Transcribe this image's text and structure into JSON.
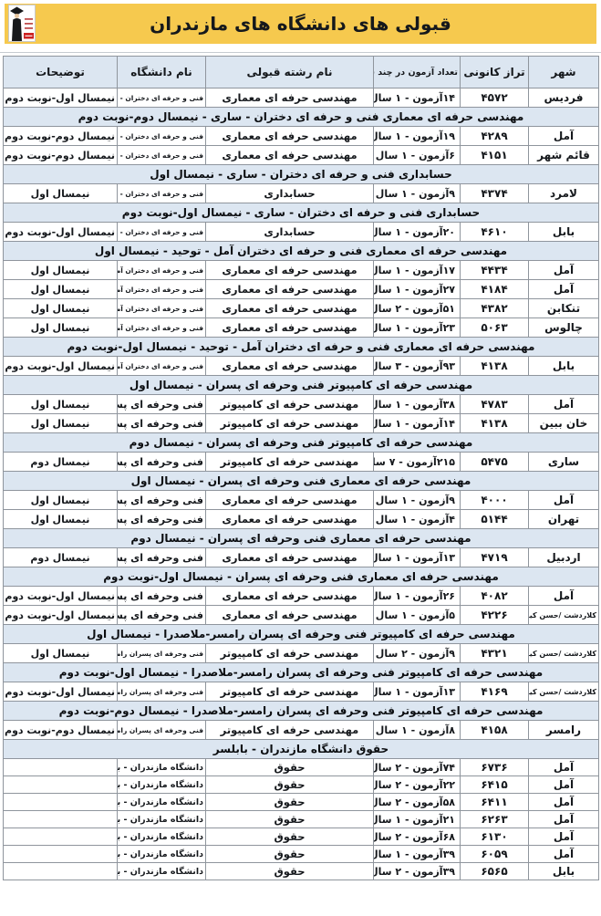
{
  "title": "قبولی های دانشگاه های مازندران",
  "logo": {
    "name": "kanoon-graduate-logo"
  },
  "colors": {
    "title_bar_yellow": "#F6C94E",
    "header_blue": "#DCE6F1",
    "border_gray": "#8f959d",
    "logo_red": "#CC2222"
  },
  "table": {
    "headers": [
      "شهر",
      "تراز کانونی",
      "تعداد آزمون در چند سال",
      "نام رشته قبولی",
      "نام دانشگاه",
      "توضیحات"
    ],
    "rows": [
      {
        "type": "data",
        "city": "فردیس",
        "score": "۴۵۷۲",
        "exams": "۱۴آزمون - ۱ سال",
        "major": "مهندسی حرفه ای معماری",
        "university": "فنی و حرفه ای دختران - ساری",
        "note": "نیمسال اول-نوبت دوم"
      },
      {
        "type": "section",
        "label": "مهندسی حرفه ای معماری فنی و حرفه ای دختران  - ساری - نیمسال دوم-نوبت دوم"
      },
      {
        "type": "data",
        "city": "آمل",
        "score": "۴۲۸۹",
        "exams": "۱۹آزمون - ۱ سال",
        "major": "مهندسی حرفه ای معماری",
        "university": "فنی و حرفه ای دختران - ساری",
        "note": "نیمسال دوم-نوبت دوم"
      },
      {
        "type": "data",
        "city": "قائم شهر",
        "score": "۴۱۵۱",
        "exams": "۶آزمون - ۱ سال",
        "major": "مهندسی حرفه ای معماری",
        "university": "فنی و حرفه ای دختران - ساری",
        "note": "نیمسال دوم-نوبت دوم"
      },
      {
        "type": "section",
        "label": "حسابداری فنی و حرفه ای دختران  - ساری - نیمسال اول"
      },
      {
        "type": "data",
        "city": "لامرد",
        "score": "۴۳۷۴",
        "exams": "۹آزمون - ۱ سال",
        "major": "حسابداری",
        "university": "فنی و حرفه ای دختران - ساری",
        "note": "نیمسال اول"
      },
      {
        "type": "section",
        "label": "حسابداری فنی و حرفه ای دختران  - ساری - نیمسال اول-نوبت دوم"
      },
      {
        "type": "data",
        "city": "بابل",
        "score": "۴۶۱۰",
        "exams": "۲۰آزمون - ۱ سال",
        "major": "حسابداری",
        "university": "فنی و حرفه ای دختران - ساری",
        "note": "نیمسال اول-نوبت دوم"
      },
      {
        "type": "section",
        "label": "مهندسی حرفه ای معماری فنی و حرفه ای دختران آمل - توحید - نیمسال اول"
      },
      {
        "type": "data",
        "city": "آمل",
        "score": "۴۴۳۴",
        "exams": "۱۷آزمون - ۱ سال",
        "major": "مهندسی حرفه ای معماری",
        "university": "فنی و حرفه ای دختران آمل - توحید",
        "note": "نیمسال اول"
      },
      {
        "type": "data",
        "city": "آمل",
        "score": "۴۱۸۴",
        "exams": "۲۷آزمون - ۱ سال",
        "major": "مهندسی حرفه ای معماری",
        "university": "فنی و حرفه ای دختران آمل - توحید",
        "note": "نیمسال اول"
      },
      {
        "type": "data",
        "city": "تنکابن",
        "score": "۴۳۸۲",
        "exams": "۵۱آزمون - ۲ سال",
        "major": "مهندسی حرفه ای معماری",
        "university": "فنی و حرفه ای دختران آمل - توحید",
        "note": "نیمسال اول"
      },
      {
        "type": "data",
        "city": "چالوس",
        "score": "۵۰۶۳",
        "exams": "۲۳آزمون - ۱ سال",
        "major": "مهندسی حرفه ای معماری",
        "university": "فنی و حرفه ای دختران آمل - توحید",
        "note": "نیمسال اول"
      },
      {
        "type": "section",
        "label": "مهندسی حرفه ای معماری فنی و حرفه ای دختران آمل - توحید - نیمسال اول-نوبت دوم"
      },
      {
        "type": "data",
        "city": "بابل",
        "score": "۴۱۳۸",
        "exams": "۹۳آزمون - ۳ سال",
        "major": "مهندسی حرفه ای معماری",
        "university": "فنی و حرفه ای دختران آمل - توحید",
        "note": "نیمسال اول-نوبت دوم"
      },
      {
        "type": "section",
        "label": "مهندسی حرفه ای کامپیوتر فنی وحرفه ای پسران - نیمسال اول"
      },
      {
        "type": "data",
        "city": "آمل",
        "score": "۴۷۸۳",
        "exams": "۳۸آزمون - ۱ سال",
        "major": "مهندسی حرفه ای کامپیوتر",
        "university": "فنی وحرفه ای پسران",
        "note": "نیمسال اول"
      },
      {
        "type": "data",
        "city": "خان ببین",
        "score": "۴۱۳۸",
        "exams": "۱۴آزمون - ۱ سال",
        "major": "مهندسی حرفه ای کامپیوتر",
        "university": "فنی وحرفه ای پسران",
        "note": "نیمسال اول"
      },
      {
        "type": "section",
        "label": "مهندسی حرفه ای کامپیوتر فنی وحرفه ای پسران - نیمسال دوم"
      },
      {
        "type": "data",
        "city": "ساری",
        "score": "۵۴۷۵",
        "exams": "۲۱۵آزمون - ۷ سال",
        "major": "مهندسی حرفه ای کامپیوتر",
        "university": "فنی وحرفه ای پسران",
        "note": "نیمسال دوم"
      },
      {
        "type": "section",
        "label": "مهندسی حرفه ای معماری فنی وحرفه ای پسران - نیمسال اول"
      },
      {
        "type": "data",
        "city": "آمل",
        "score": "۴۰۰۰",
        "exams": "۹آزمون - ۱ سال",
        "major": "مهندسی حرفه ای معماری",
        "university": "فنی وحرفه ای پسران",
        "note": "نیمسال اول"
      },
      {
        "type": "data",
        "city": "تهران",
        "score": "۵۱۴۴",
        "exams": "۴آزمون - ۱ سال",
        "major": "مهندسی حرفه ای معماری",
        "university": "فنی وحرفه ای پسران",
        "note": "نیمسال اول"
      },
      {
        "type": "section",
        "label": "مهندسی حرفه ای معماری فنی وحرفه ای پسران - نیمسال دوم"
      },
      {
        "type": "data",
        "city": "اردبیل",
        "score": "۴۷۱۹",
        "exams": "۱۳آزمون - ۱ سال",
        "major": "مهندسی حرفه ای معماری",
        "university": "فنی وحرفه ای پسران",
        "note": "نیمسال دوم"
      },
      {
        "type": "section",
        "label": "مهندسی حرفه ای معماری فنی وحرفه ای پسران - نیمسال اول-نوبت دوم"
      },
      {
        "type": "data",
        "city": "آمل",
        "score": "۴۰۸۲",
        "exams": "۲۶آزمون - ۱ سال",
        "major": "مهندسی حرفه ای معماری",
        "university": "فنی وحرفه ای پسران",
        "note": "نیمسال اول-نوبت دوم"
      },
      {
        "type": "data",
        "city": "کلاردشت /حسن کیف",
        "score": "۴۲۲۶",
        "exams": "۵آزمون - ۱ سال",
        "major": "مهندسی حرفه ای معماری",
        "university": "فنی وحرفه ای پسران",
        "note": "نیمسال اول-نوبت دوم"
      },
      {
        "type": "section",
        "label": "مهندسی حرفه ای کامپیوتر فنی وحرفه ای پسران رامسر-ملاصدرا - نیمسال اول"
      },
      {
        "type": "data",
        "city": "کلاردشت /حسن کیف",
        "score": "۴۳۲۱",
        "exams": "۹آزمون - ۲ سال",
        "major": "مهندسی حرفه ای کامپیوتر",
        "university": "فنی وحرفه ای پسران رامسر-ملاصدرا",
        "note": "نیمسال اول"
      },
      {
        "type": "section",
        "label": "مهندسی حرفه ای کامپیوتر فنی وحرفه ای پسران رامسر-ملاصدرا - نیمسال اول-نوبت دوم"
      },
      {
        "type": "data",
        "city": "کلاردشت /حسن کیف",
        "score": "۴۱۶۹",
        "exams": "۱۳آزمون - ۱ سال",
        "major": "مهندسی حرفه ای کامپیوتر",
        "university": "فنی وحرفه ای پسران رامسر-ملاصدرا",
        "note": "نیمسال اول-نوبت دوم"
      },
      {
        "type": "section",
        "label": "مهندسی حرفه ای کامپیوتر فنی وحرفه ای پسران رامسر-ملاصدرا - نیمسال دوم-نوبت دوم"
      },
      {
        "type": "data",
        "city": "رامسر",
        "score": "۴۱۵۸",
        "exams": "۸آزمون - ۱ سال",
        "major": "مهندسی حرفه ای کامپیوتر",
        "university": "فنی وحرفه ای پسران رامسر-ملاصدرا",
        "note": "نیمسال دوم-نوبت دوم"
      },
      {
        "type": "section",
        "label": "حقوق دانشگاه مازندران - بابلسر"
      },
      {
        "type": "data",
        "city": "آمل",
        "score": "۶۷۳۶",
        "exams": "۷۴آزمون - ۲ سال",
        "major": "حقوق",
        "university": "دانشگاه مازندران - بابلسر",
        "note": ""
      },
      {
        "type": "data",
        "city": "آمل",
        "score": "۶۴۱۵",
        "exams": "۲۲آزمون - ۲ سال",
        "major": "حقوق",
        "university": "دانشگاه مازندران - بابلسر",
        "note": ""
      },
      {
        "type": "data",
        "city": "آمل",
        "score": "۶۴۱۱",
        "exams": "۵۸آزمون - ۲ سال",
        "major": "حقوق",
        "university": "دانشگاه مازندران - بابلسر",
        "note": ""
      },
      {
        "type": "data",
        "city": "آمل",
        "score": "۶۲۶۳",
        "exams": "۲۱آزمون - ۱ سال",
        "major": "حقوق",
        "university": "دانشگاه مازندران - بابلسر",
        "note": ""
      },
      {
        "type": "data",
        "city": "آمل",
        "score": "۶۱۳۰",
        "exams": "۶۸آزمون - ۲ سال",
        "major": "حقوق",
        "university": "دانشگاه مازندران - بابلسر",
        "note": ""
      },
      {
        "type": "data",
        "city": "آمل",
        "score": "۶۰۵۹",
        "exams": "۳۹آزمون - ۱ سال",
        "major": "حقوق",
        "university": "دانشگاه مازندران - بابلسر",
        "note": ""
      },
      {
        "type": "data",
        "city": "بابل",
        "score": "۶۵۶۵",
        "exams": "۳۹آزمون - ۲ سال",
        "major": "حقوق",
        "university": "دانشگاه مازندران - بابلسر",
        "note": ""
      }
    ]
  }
}
